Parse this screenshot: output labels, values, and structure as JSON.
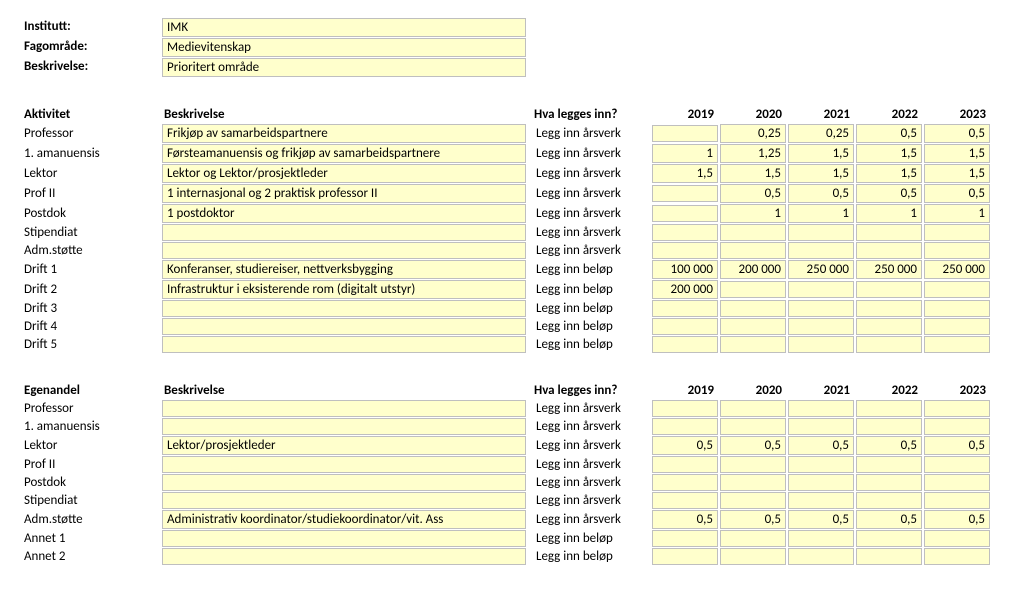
{
  "top": {
    "institutt_label": "Institutt:",
    "institutt_value": "IMK",
    "fagomrade_label": "Fagområde:",
    "fagomrade_value": "Medievitenskap",
    "beskrivelse_label": "Beskrivelse:",
    "beskrivelse_value": "Prioritert område"
  },
  "years": [
    "2019",
    "2020",
    "2021",
    "2022",
    "2023"
  ],
  "section1": {
    "col_aktivitet": "Aktivitet",
    "col_beskrivelse": "Beskrivelse",
    "col_hva": "Hva legges inn?",
    "rows": [
      {
        "label": "Professor",
        "desc": "Frikjøp av samarbeidspartnere",
        "hint": "Legg inn årsverk",
        "v": [
          "",
          "0,25",
          "0,25",
          "0,5",
          "0,5"
        ]
      },
      {
        "label": "1. amanuensis",
        "desc": "Førsteamanuensis og frikjøp av samarbeidspartnere",
        "hint": "Legg inn årsverk",
        "v": [
          "1",
          "1,25",
          "1,5",
          "1,5",
          "1,5"
        ]
      },
      {
        "label": "Lektor",
        "desc": "Lektor og Lektor/prosjektleder",
        "hint": "Legg inn årsverk",
        "v": [
          "1,5",
          "1,5",
          "1,5",
          "1,5",
          "1,5"
        ]
      },
      {
        "label": "Prof II",
        "desc": "1 internasjonal og 2 praktisk professor II",
        "hint": "Legg inn årsverk",
        "v": [
          "",
          "0,5",
          "0,5",
          "0,5",
          "0,5"
        ]
      },
      {
        "label": "Postdok",
        "desc": "1 postdoktor",
        "hint": "Legg inn årsverk",
        "v": [
          "",
          "1",
          "1",
          "1",
          "1"
        ]
      },
      {
        "label": "Stipendiat",
        "desc": "",
        "hint": "Legg inn årsverk",
        "v": [
          "",
          "",
          "",
          "",
          ""
        ]
      },
      {
        "label": "Adm.støtte",
        "desc": "",
        "hint": "Legg inn årsverk",
        "v": [
          "",
          "",
          "",
          "",
          ""
        ]
      },
      {
        "label": "Drift 1",
        "desc": "Konferanser, studiereiser, nettverksbygging",
        "hint": "Legg inn beløp",
        "v": [
          "100 000",
          "200 000",
          "250 000",
          "250 000",
          "250 000"
        ]
      },
      {
        "label": "Drift 2",
        "desc": "Infrastruktur i eksisterende rom (digitalt utstyr)",
        "hint": "Legg inn beløp",
        "v": [
          "200 000",
          "",
          "",
          "",
          ""
        ]
      },
      {
        "label": "Drift 3",
        "desc": "",
        "hint": "Legg inn beløp",
        "v": [
          "",
          "",
          "",
          "",
          ""
        ]
      },
      {
        "label": "Drift 4",
        "desc": "",
        "hint": "Legg inn beløp",
        "v": [
          "",
          "",
          "",
          "",
          ""
        ]
      },
      {
        "label": "Drift 5",
        "desc": "",
        "hint": "Legg inn beløp",
        "v": [
          "",
          "",
          "",
          "",
          ""
        ]
      }
    ]
  },
  "section2": {
    "col_aktivitet": "Egenandel",
    "col_beskrivelse": "Beskrivelse",
    "col_hva": "Hva legges inn?",
    "rows": [
      {
        "label": "Professor",
        "desc": "",
        "hint": "Legg inn årsverk",
        "v": [
          "",
          "",
          "",
          "",
          ""
        ]
      },
      {
        "label": "1. amanuensis",
        "desc": "",
        "hint": "Legg inn årsverk",
        "v": [
          "",
          "",
          "",
          "",
          ""
        ]
      },
      {
        "label": "Lektor",
        "desc": "Lektor/prosjektleder",
        "hint": "Legg inn årsverk",
        "v": [
          "0,5",
          "0,5",
          "0,5",
          "0,5",
          "0,5"
        ]
      },
      {
        "label": "Prof II",
        "desc": "",
        "hint": "Legg inn årsverk",
        "v": [
          "",
          "",
          "",
          "",
          ""
        ]
      },
      {
        "label": "Postdok",
        "desc": "",
        "hint": "Legg inn årsverk",
        "v": [
          "",
          "",
          "",
          "",
          ""
        ]
      },
      {
        "label": "Stipendiat",
        "desc": "",
        "hint": "Legg inn årsverk",
        "v": [
          "",
          "",
          "",
          "",
          ""
        ]
      },
      {
        "label": "Adm.støtte",
        "desc": "Administrativ koordinator/studiekoordinator/vit. Ass",
        "hint": "Legg inn årsverk",
        "v": [
          "0,5",
          "0,5",
          "0,5",
          "0,5",
          "0,5"
        ]
      },
      {
        "label": "Annet 1",
        "desc": "",
        "hint": "Legg inn beløp",
        "v": [
          "",
          "",
          "",
          "",
          ""
        ]
      },
      {
        "label": "Annet 2",
        "desc": "",
        "hint": "Legg inn beløp",
        "v": [
          "",
          "",
          "",
          "",
          ""
        ]
      }
    ]
  },
  "style": {
    "cell_bg": "#ffffcc",
    "cell_border": "#bfbfbf",
    "font_family": "Calibri",
    "font_size_pt": 10
  }
}
